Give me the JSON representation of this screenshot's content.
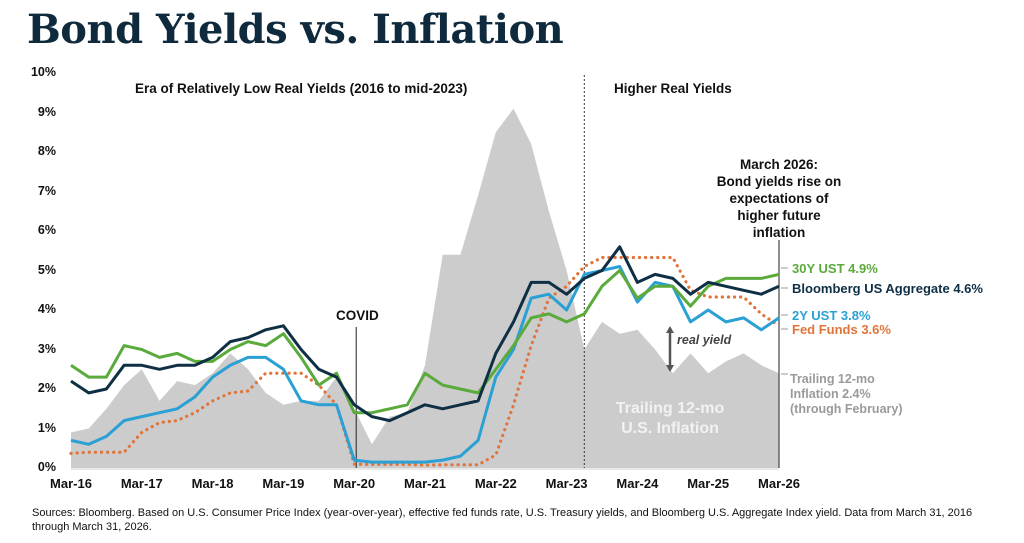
{
  "title": "Bond Yields vs. Inflation",
  "sources": "Sources: Bloomberg. Based on U.S. Consumer Price Index (year-over-year), effective fed funds rate, U.S. Treasury yields, and Bloomberg U.S. Aggregate Index yield. Data from March 31, 2016 through March 31, 2026.",
  "chart_data": {
    "type": "line",
    "title": "Bond Yields vs. Inflation",
    "xlabel": "",
    "ylabel": "",
    "ylim": [
      0,
      10
    ],
    "grid": false,
    "y_ticks": [
      "0%",
      "1%",
      "2%",
      "3%",
      "4%",
      "5%",
      "6%",
      "7%",
      "8%",
      "9%",
      "10%"
    ],
    "x_ticks": [
      "Mar-16",
      "Mar-17",
      "Mar-18",
      "Mar-19",
      "Mar-20",
      "Mar-21",
      "Mar-22",
      "Mar-23",
      "Mar-24",
      "Mar-25",
      "Mar-26"
    ],
    "x_frequency": "quarterly, Mar-16 to Mar-26",
    "annotations": {
      "era_low": "Era of Relatively Low Real Yields (2016 to mid-2023)",
      "era_high": "Higher Real Yields",
      "note": [
        "March 2026:",
        "Bond yields rise on",
        "expectations of",
        "higher future",
        "inflation"
      ],
      "covid": "COVID",
      "real_yield": "real yield",
      "area_label": [
        "Trailing 12-mo",
        "U.S. Inflation"
      ],
      "divider_date": "mid-2023"
    },
    "series": [
      {
        "name": "Trailing 12-mo U.S. Inflation",
        "end_label": [
          "Trailing 12-mo",
          "Inflation 2.4%",
          "(through February)"
        ],
        "style": "area",
        "color": "#cccccc",
        "values": [
          0.9,
          1.0,
          1.5,
          2.1,
          2.5,
          1.7,
          2.2,
          2.1,
          2.4,
          2.9,
          2.5,
          1.9,
          1.6,
          1.7,
          1.7,
          2.3,
          1.5,
          0.6,
          1.3,
          1.4,
          2.6,
          5.4,
          5.4,
          6.9,
          8.5,
          9.1,
          8.2,
          6.5,
          5.0,
          3.0,
          3.7,
          3.4,
          3.5,
          3.0,
          2.4,
          2.9,
          2.4,
          2.7,
          2.9,
          2.6,
          2.4
        ]
      },
      {
        "name": "30Y UST",
        "end_label": "30Y UST 4.9%",
        "style": "solid",
        "color": "#5aaa3c",
        "values": [
          2.6,
          2.3,
          2.3,
          3.1,
          3.0,
          2.8,
          2.9,
          2.7,
          2.7,
          3.0,
          3.2,
          3.1,
          3.4,
          2.8,
          2.1,
          2.4,
          1.4,
          1.4,
          1.5,
          1.6,
          2.4,
          2.1,
          2.0,
          1.9,
          2.5,
          3.1,
          3.8,
          3.9,
          3.7,
          3.9,
          4.6,
          5.0,
          4.3,
          4.6,
          4.6,
          4.1,
          4.6,
          4.8,
          4.8,
          4.8,
          4.9
        ]
      },
      {
        "name": "Bloomberg US Aggregate",
        "end_label": "Bloomberg US Aggregate 4.6%",
        "style": "solid",
        "color": "#0f2f45",
        "values": [
          2.2,
          1.9,
          2.0,
          2.6,
          2.6,
          2.5,
          2.6,
          2.6,
          2.8,
          3.2,
          3.3,
          3.5,
          3.6,
          3.0,
          2.5,
          2.3,
          1.6,
          1.3,
          1.2,
          1.4,
          1.6,
          1.5,
          1.6,
          1.7,
          2.9,
          3.7,
          4.7,
          4.7,
          4.4,
          4.8,
          5.0,
          5.6,
          4.7,
          4.9,
          4.8,
          4.4,
          4.7,
          4.6,
          4.5,
          4.4,
          4.6
        ]
      },
      {
        "name": "2Y UST",
        "end_label": "2Y UST 3.8%",
        "style": "solid",
        "color": "#2aa0d4",
        "values": [
          0.7,
          0.6,
          0.8,
          1.2,
          1.3,
          1.4,
          1.5,
          1.8,
          2.3,
          2.6,
          2.8,
          2.8,
          2.5,
          1.7,
          1.6,
          1.6,
          0.2,
          0.15,
          0.15,
          0.15,
          0.15,
          0.2,
          0.3,
          0.7,
          2.3,
          3.0,
          4.3,
          4.4,
          4.0,
          4.9,
          5.0,
          5.1,
          4.2,
          4.7,
          4.6,
          3.7,
          4.0,
          3.7,
          3.8,
          3.5,
          3.8
        ]
      },
      {
        "name": "Fed Funds",
        "end_label": "Fed Funds 3.6%",
        "style": "dotted",
        "color": "#e0743a",
        "values": [
          0.37,
          0.4,
          0.4,
          0.4,
          0.9,
          1.15,
          1.2,
          1.4,
          1.7,
          1.9,
          1.95,
          2.4,
          2.4,
          2.4,
          2.1,
          1.6,
          0.1,
          0.09,
          0.09,
          0.09,
          0.07,
          0.08,
          0.08,
          0.08,
          0.33,
          1.6,
          3.1,
          4.3,
          4.6,
          5.1,
          5.33,
          5.33,
          5.33,
          5.33,
          5.33,
          4.5,
          4.33,
          4.33,
          4.33,
          3.9,
          3.6
        ]
      }
    ]
  }
}
